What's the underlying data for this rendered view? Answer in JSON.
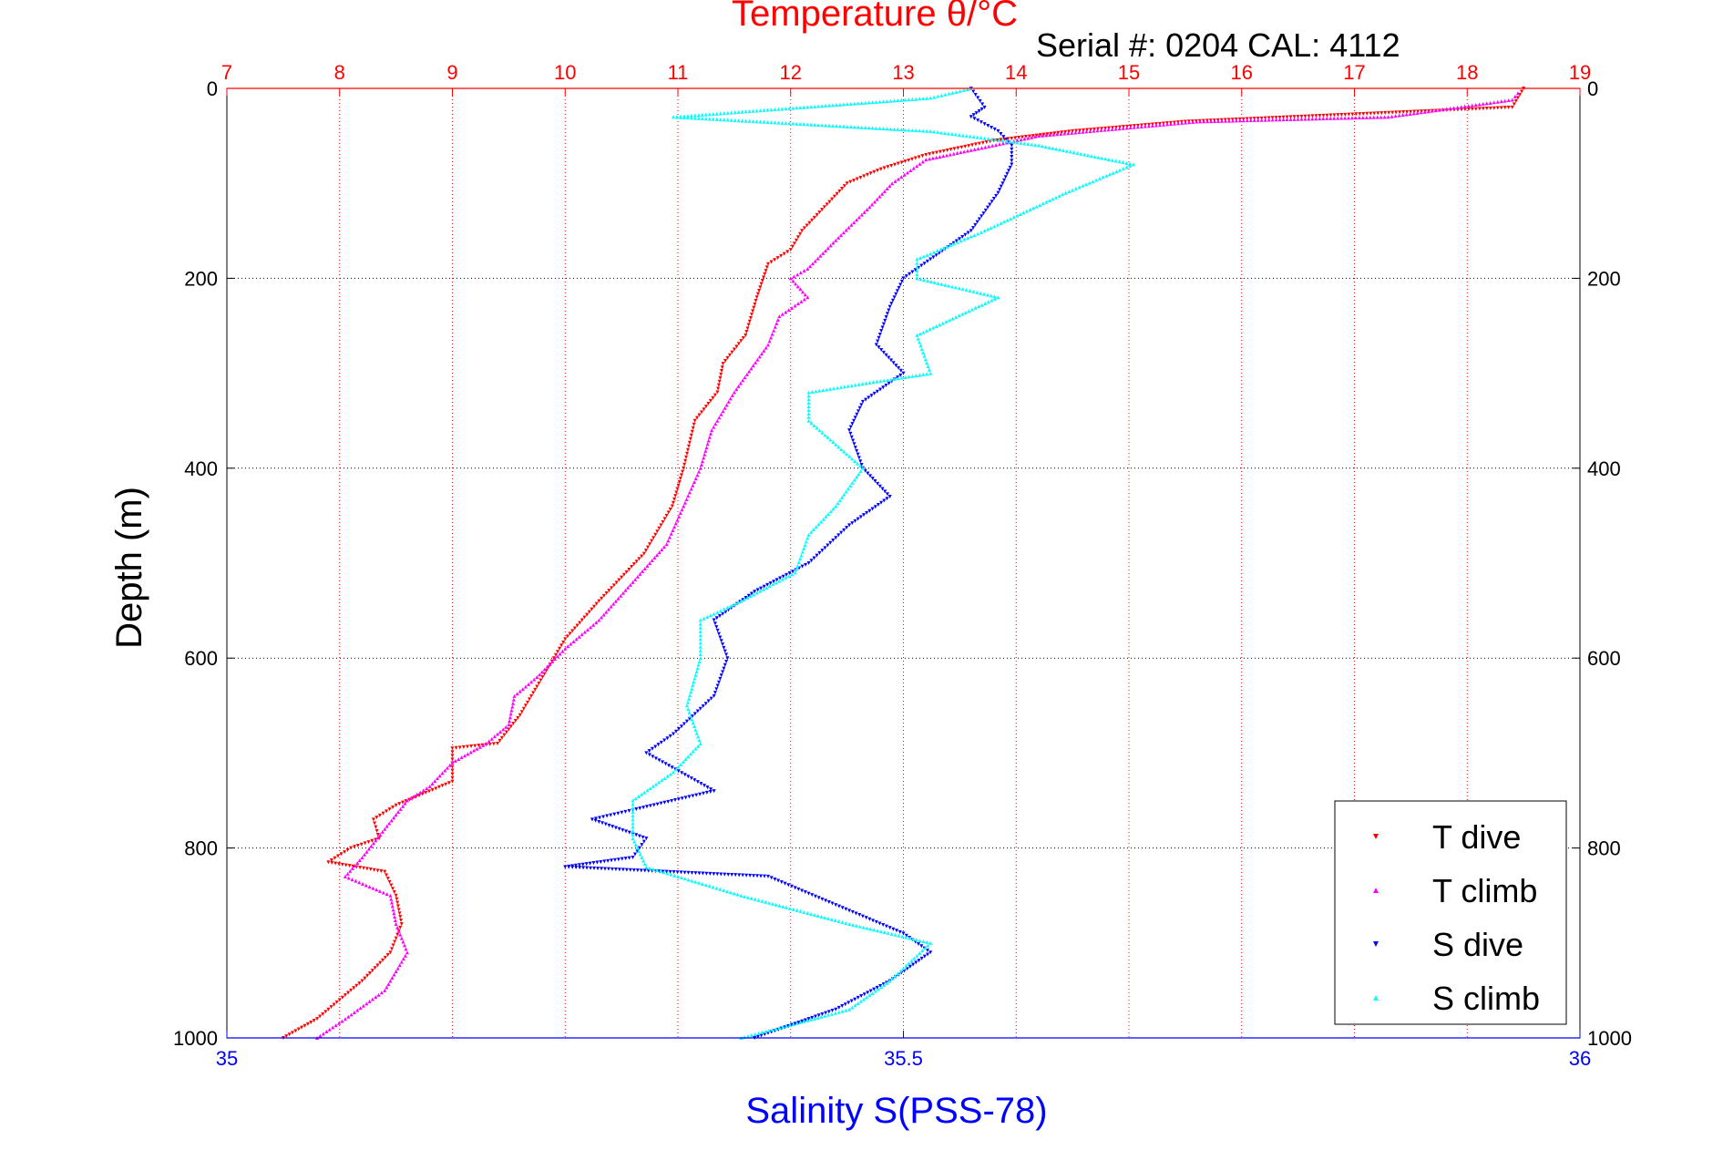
{
  "chart_data": {
    "type": "scatter",
    "title": "Temperature θ/°C",
    "subtitle": "Serial #: 0204  CAL: 4112",
    "ylabel": "Depth (m)",
    "xlabel_bottom": "Salinity S(PSS-78)",
    "y_axis": {
      "min": 0,
      "max": 1000,
      "reversed": true,
      "ticks": [
        "0",
        "200",
        "400",
        "600",
        "800",
        "1000"
      ]
    },
    "x_top": {
      "min": 7,
      "max": 19,
      "ticks": [
        "7",
        "8",
        "9",
        "10",
        "11",
        "12",
        "13",
        "14",
        "15",
        "16",
        "17",
        "18",
        "19"
      ]
    },
    "x_bottom": {
      "min": 35,
      "max": 36,
      "ticks": [
        "35",
        "35.5",
        "36"
      ]
    },
    "grid": true,
    "legend_position": "bottom-right",
    "colors": {
      "temperature_axis": "#ff0000",
      "salinity_axis": "#0000ff",
      "grid": "#000000"
    },
    "series": [
      {
        "name": "T dive",
        "axis": "top",
        "color": "#ff0000",
        "marker": "triangle-down",
        "points": [
          [
            18.5,
            0
          ],
          [
            18.4,
            20
          ],
          [
            15.5,
            35
          ],
          [
            14.5,
            45
          ],
          [
            13.8,
            55
          ],
          [
            13.2,
            70
          ],
          [
            12.8,
            85
          ],
          [
            12.5,
            100
          ],
          [
            12.3,
            125
          ],
          [
            12.1,
            150
          ],
          [
            12.0,
            170
          ],
          [
            11.8,
            185
          ],
          [
            11.7,
            220
          ],
          [
            11.6,
            260
          ],
          [
            11.4,
            290
          ],
          [
            11.35,
            320
          ],
          [
            11.15,
            350
          ],
          [
            11.05,
            400
          ],
          [
            10.95,
            440
          ],
          [
            10.7,
            490
          ],
          [
            10.3,
            540
          ],
          [
            10.0,
            580
          ],
          [
            9.8,
            620
          ],
          [
            9.6,
            660
          ],
          [
            9.4,
            690
          ],
          [
            9.0,
            695
          ],
          [
            9.0,
            730
          ],
          [
            8.5,
            755
          ],
          [
            8.3,
            770
          ],
          [
            8.35,
            790
          ],
          [
            8.1,
            800
          ],
          [
            7.9,
            815
          ],
          [
            8.4,
            825
          ],
          [
            8.5,
            850
          ],
          [
            8.55,
            880
          ],
          [
            8.45,
            910
          ],
          [
            8.2,
            940
          ],
          [
            7.8,
            980
          ],
          [
            7.5,
            1000
          ]
        ]
      },
      {
        "name": "T climb",
        "axis": "top",
        "color": "#ff00ff",
        "marker": "triangle-up",
        "points": [
          [
            18.45,
            5
          ],
          [
            18.4,
            12
          ],
          [
            17.3,
            30
          ],
          [
            15.6,
            35
          ],
          [
            14.2,
            50
          ],
          [
            13.6,
            65
          ],
          [
            13.2,
            75
          ],
          [
            12.9,
            100
          ],
          [
            12.7,
            125
          ],
          [
            12.4,
            160
          ],
          [
            12.15,
            190
          ],
          [
            12.0,
            200
          ],
          [
            12.15,
            220
          ],
          [
            11.9,
            240
          ],
          [
            11.8,
            270
          ],
          [
            11.5,
            320
          ],
          [
            11.3,
            360
          ],
          [
            11.2,
            400
          ],
          [
            11.05,
            440
          ],
          [
            10.9,
            480
          ],
          [
            10.6,
            520
          ],
          [
            10.3,
            560
          ],
          [
            10.0,
            590
          ],
          [
            9.75,
            620
          ],
          [
            9.55,
            640
          ],
          [
            9.5,
            670
          ],
          [
            9.3,
            690
          ],
          [
            9.0,
            710
          ],
          [
            8.8,
            735
          ],
          [
            8.6,
            750
          ],
          [
            8.4,
            780
          ],
          [
            8.2,
            810
          ],
          [
            8.05,
            830
          ],
          [
            8.45,
            850
          ],
          [
            8.5,
            880
          ],
          [
            8.6,
            910
          ],
          [
            8.4,
            950
          ],
          [
            8.05,
            980
          ],
          [
            7.8,
            1000
          ]
        ]
      },
      {
        "name": "S dive",
        "axis": "bottom",
        "color": "#0000ff",
        "marker": "triangle-down",
        "points": [
          [
            35.55,
            0
          ],
          [
            35.56,
            20
          ],
          [
            35.55,
            30
          ],
          [
            35.57,
            45
          ],
          [
            35.58,
            60
          ],
          [
            35.58,
            80
          ],
          [
            35.57,
            110
          ],
          [
            35.55,
            150
          ],
          [
            35.52,
            180
          ],
          [
            35.5,
            200
          ],
          [
            35.49,
            230
          ],
          [
            35.48,
            270
          ],
          [
            35.5,
            300
          ],
          [
            35.47,
            330
          ],
          [
            35.46,
            360
          ],
          [
            35.47,
            400
          ],
          [
            35.49,
            430
          ],
          [
            35.46,
            460
          ],
          [
            35.43,
            500
          ],
          [
            35.39,
            530
          ],
          [
            35.36,
            560
          ],
          [
            35.37,
            600
          ],
          [
            35.36,
            640
          ],
          [
            35.33,
            680
          ],
          [
            35.31,
            700
          ],
          [
            35.36,
            740
          ],
          [
            35.3,
            760
          ],
          [
            35.27,
            770
          ],
          [
            35.31,
            790
          ],
          [
            35.3,
            810
          ],
          [
            35.25,
            820
          ],
          [
            35.4,
            830
          ],
          [
            35.45,
            860
          ],
          [
            35.5,
            890
          ],
          [
            35.52,
            910
          ],
          [
            35.49,
            940
          ],
          [
            35.45,
            970
          ],
          [
            35.39,
            1000
          ]
        ]
      },
      {
        "name": "S climb",
        "axis": "bottom",
        "color": "#00ffff",
        "marker": "triangle-up",
        "points": [
          [
            35.55,
            0
          ],
          [
            35.52,
            10
          ],
          [
            35.33,
            30
          ],
          [
            35.52,
            45
          ],
          [
            35.6,
            60
          ],
          [
            35.67,
            80
          ],
          [
            35.62,
            110
          ],
          [
            35.56,
            150
          ],
          [
            35.51,
            180
          ],
          [
            35.51,
            200
          ],
          [
            35.57,
            220
          ],
          [
            35.51,
            260
          ],
          [
            35.52,
            300
          ],
          [
            35.43,
            320
          ],
          [
            35.43,
            350
          ],
          [
            35.47,
            400
          ],
          [
            35.45,
            440
          ],
          [
            35.43,
            470
          ],
          [
            35.42,
            510
          ],
          [
            35.38,
            540
          ],
          [
            35.35,
            560
          ],
          [
            35.35,
            600
          ],
          [
            35.34,
            650
          ],
          [
            35.35,
            690
          ],
          [
            35.33,
            720
          ],
          [
            35.3,
            750
          ],
          [
            35.3,
            790
          ],
          [
            35.31,
            820
          ],
          [
            35.38,
            850
          ],
          [
            35.46,
            880
          ],
          [
            35.52,
            900
          ],
          [
            35.49,
            940
          ],
          [
            35.46,
            970
          ],
          [
            35.38,
            1000
          ]
        ]
      }
    ]
  }
}
